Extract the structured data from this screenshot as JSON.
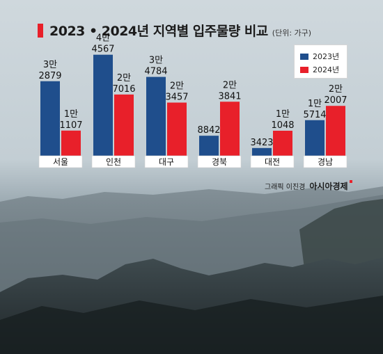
{
  "title": "2023 • 2024년 지역별 입주물량 비교",
  "unit": "(단위: 가구)",
  "credit": {
    "name": "그래픽 이진경",
    "logo": "아시아경제"
  },
  "colors": {
    "y2023": "#1f4e8c",
    "y2024": "#e8202a",
    "accent": "#e8202a"
  },
  "chart_data": {
    "type": "bar",
    "title": "2023 • 2024년 지역별 입주물량 비교",
    "unit": "(단위: 가구)",
    "categories": [
      "서울",
      "인천",
      "대구",
      "경북",
      "대전",
      "경남"
    ],
    "series": [
      {
        "name": "2023년",
        "values": [
          32879,
          44567,
          34784,
          8842,
          3423,
          15714
        ],
        "labels": [
          [
            "3만",
            "2879"
          ],
          [
            "4만",
            "4567"
          ],
          [
            "3만",
            "4784"
          ],
          [
            "8842"
          ],
          [
            "3423"
          ],
          [
            "1만",
            "5714"
          ]
        ]
      },
      {
        "name": "2024년",
        "values": [
          11107,
          27016,
          23457,
          23841,
          11048,
          22007
        ],
        "labels": [
          [
            "1만",
            "1107"
          ],
          [
            "2만",
            "7016"
          ],
          [
            "2만",
            "3457"
          ],
          [
            "2만",
            "3841"
          ],
          [
            "1만",
            "1048"
          ],
          [
            "2만",
            "2007"
          ]
        ]
      }
    ],
    "ylim": [
      0,
      46000
    ],
    "legend": "top-right",
    "grid": false
  }
}
